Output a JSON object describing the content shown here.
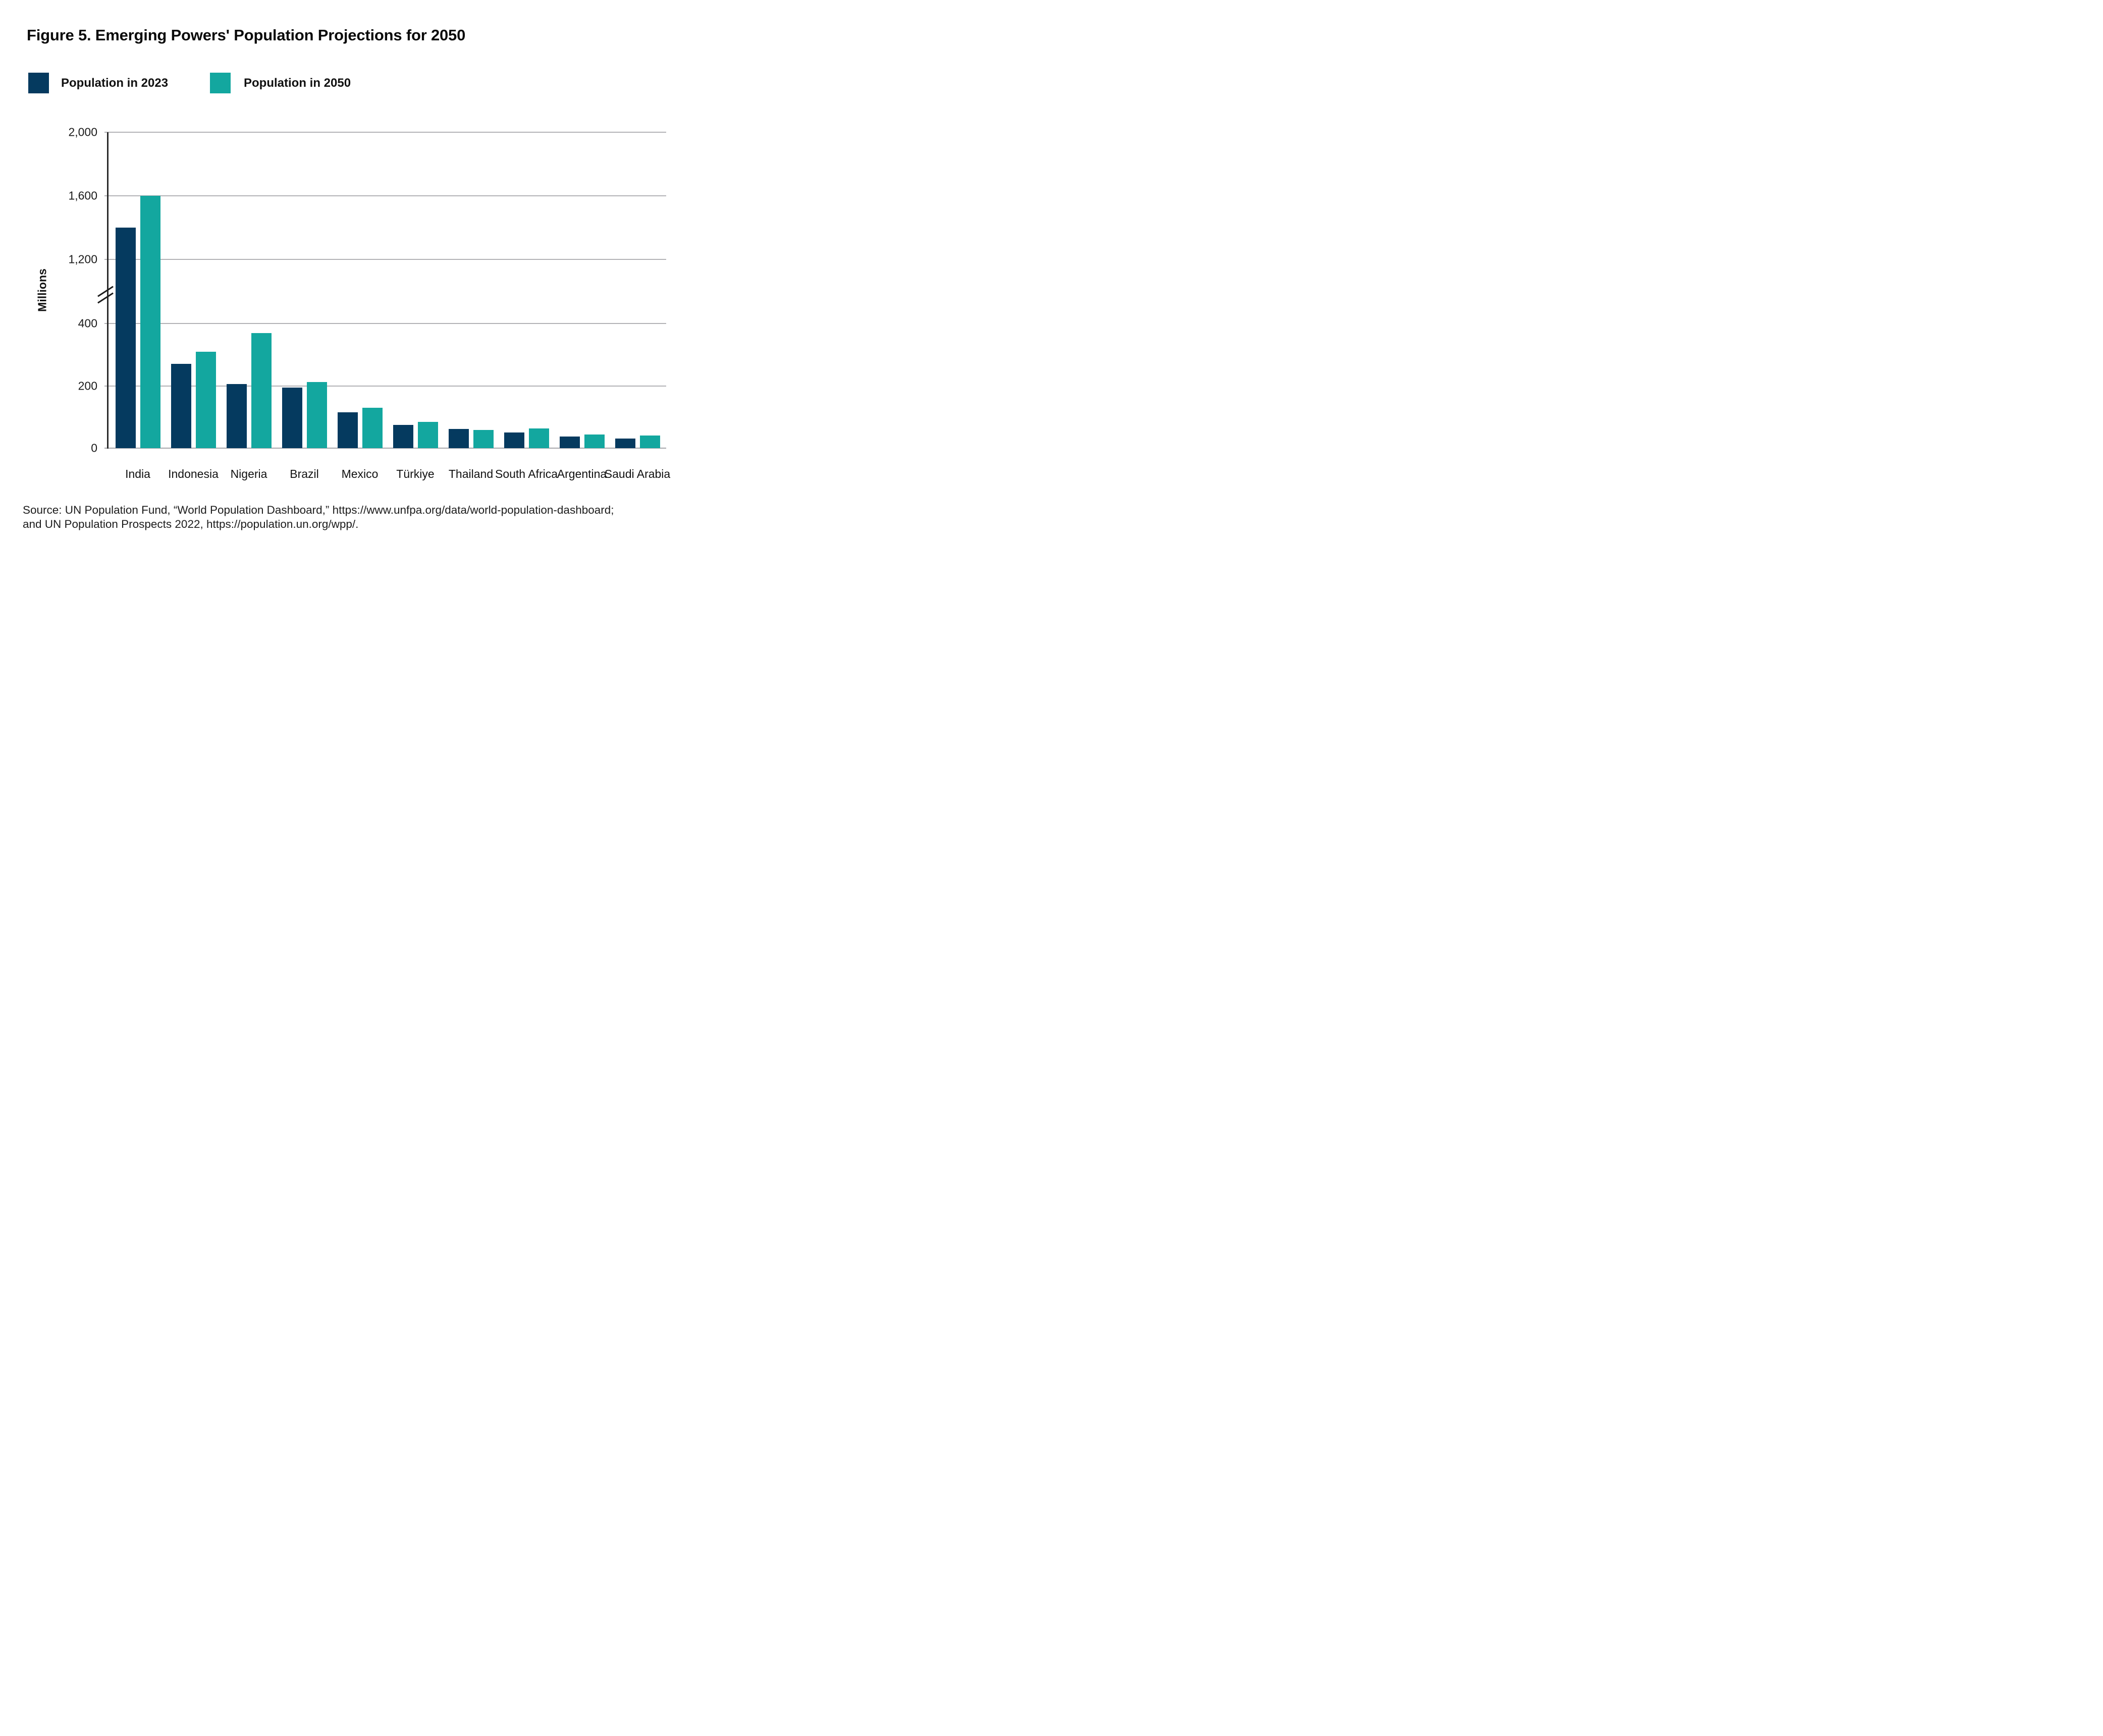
{
  "title": "Figure 5. Emerging Powers' Population Projections for 2050",
  "legend": {
    "items": [
      {
        "label": "Population in 2023",
        "color": "#053a5f"
      },
      {
        "label": "Population in 2050",
        "color": "#13a79f"
      }
    ]
  },
  "chart_data": {
    "type": "bar",
    "title": "Figure 5. Emerging Powers' Population Projections for 2050",
    "xlabel": "",
    "ylabel": "Millions",
    "categories": [
      "India",
      "Indonesia",
      "Nigeria",
      "Brazil",
      "Mexico",
      "Türkiye",
      "Thailand",
      "South Africa",
      "Argentina",
      "Saudi Arabia"
    ],
    "series": [
      {
        "name": "Population in 2023",
        "color": "#053a5f",
        "values": [
          1400,
          270,
          205,
          195,
          115,
          75,
          61,
          51,
          38,
          30
        ]
      },
      {
        "name": "Population in 2050",
        "color": "#13a79f",
        "values": [
          1600,
          310,
          370,
          212,
          130,
          85,
          58,
          63,
          43,
          41
        ]
      }
    ],
    "ylim": [
      0,
      2000
    ],
    "yticks": [
      0,
      200,
      400,
      1200,
      1600,
      2000
    ],
    "ytick_labels": [
      "0",
      "200",
      "400",
      "1,200",
      "1,600",
      "2,000"
    ],
    "axis_break_between": [
      400,
      1200
    ],
    "grid": "horizontal-only",
    "legend_position": "top-left",
    "units": "millions of people"
  },
  "source": {
    "line1": "Source: UN Population Fund, “World Population Dashboard,” https://www.unfpa.org/data/world-population-dashboard;",
    "line2": "and UN Population Prospects 2022,  https://population.un.org/wpp/."
  }
}
